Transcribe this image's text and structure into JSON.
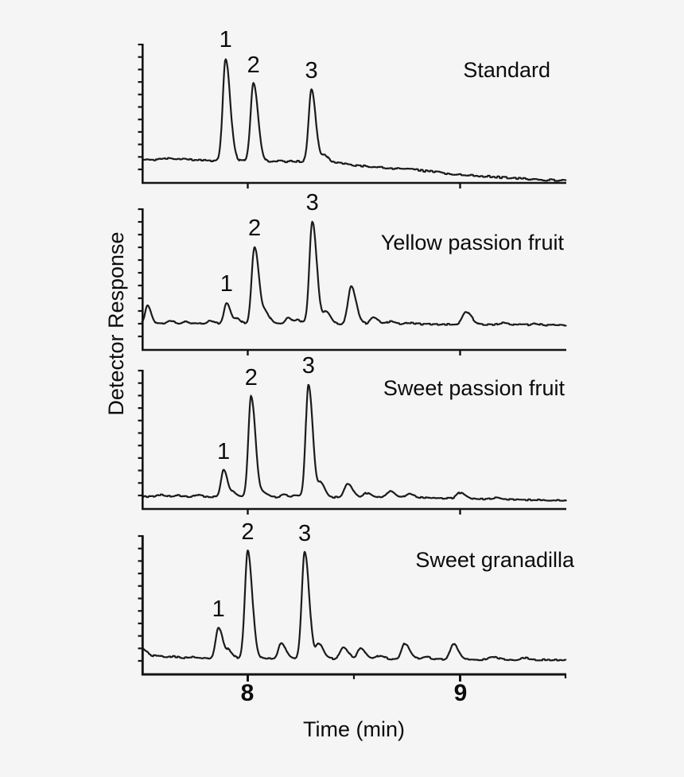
{
  "chart_data": {
    "type": "line",
    "description": "Stacked GC/HPLC chromatograms of four samples with three labeled peaks",
    "xlabel": "Time (min)",
    "ylabel": "Detector Response",
    "x_axis": {
      "range_min": [
        7.5,
        9.5
      ],
      "ticks": [
        8,
        9
      ],
      "tick_labels": [
        "8",
        "9"
      ]
    },
    "y_axis": {
      "tick_labels_shown": false
    },
    "panels": [
      {
        "title": "Standard",
        "labeled_peaks": [
          {
            "label": "1",
            "time_min": 7.9,
            "rel_height": 0.74
          },
          {
            "label": "2",
            "time_min": 8.03,
            "rel_height": 0.56
          },
          {
            "label": "3",
            "time_min": 8.3,
            "rel_height": 0.52
          }
        ],
        "baseline": [
          [
            7.5,
            0.17
          ],
          [
            7.88,
            0.16
          ],
          [
            8.32,
            0.152
          ],
          [
            8.42,
            0.148
          ],
          [
            8.5,
            0.128
          ],
          [
            8.62,
            0.112
          ],
          [
            8.78,
            0.096
          ],
          [
            8.95,
            0.066
          ],
          [
            9.1,
            0.05
          ],
          [
            9.25,
            0.034
          ],
          [
            9.4,
            0.022
          ],
          [
            9.5,
            0.018
          ]
        ],
        "peaks": [
          {
            "t": 7.62,
            "h": 0.008,
            "w": 0.015
          },
          {
            "t": 7.7,
            "h": 0.006,
            "w": 0.012
          },
          {
            "label": "1",
            "t": 7.896,
            "h": 0.735,
            "w": 0.0135
          },
          {
            "label": "2",
            "t": 8.027,
            "h": 0.555,
            "w": 0.0135
          },
          {
            "label": "3",
            "t": 8.3,
            "h": 0.52,
            "w": 0.013
          },
          {
            "t": 8.362,
            "h": 0.05,
            "w": 0.011
          }
        ],
        "noise": 0.0065,
        "seed": 3
      },
      {
        "title": "Yellow passion fruit",
        "labeled_peaks": [
          {
            "label": "1",
            "time_min": 7.9,
            "rel_height": 0.15
          },
          {
            "label": "2",
            "time_min": 8.03,
            "rel_height": 0.55
          },
          {
            "label": "3",
            "time_min": 8.3,
            "rel_height": 0.73
          }
        ],
        "baseline": [
          [
            7.5,
            0.186
          ],
          [
            8.6,
            0.183
          ],
          [
            9.5,
            0.175
          ]
        ],
        "peaks": [
          {
            "t": 7.528,
            "h": 0.13,
            "w": 0.011
          },
          {
            "t": 7.635,
            "h": 0.018,
            "w": 0.014
          },
          {
            "t": 7.705,
            "h": 0.014,
            "w": 0.014
          },
          {
            "t": 7.82,
            "h": 0.022,
            "w": 0.012
          },
          {
            "label": "1",
            "t": 7.9,
            "h": 0.15,
            "w": 0.012
          },
          {
            "t": 7.948,
            "h": 0.038,
            "w": 0.011
          },
          {
            "label": "2",
            "t": 8.032,
            "h": 0.545,
            "w": 0.0135
          },
          {
            "t": 8.085,
            "h": 0.07,
            "w": 0.013
          },
          {
            "t": 8.19,
            "h": 0.048,
            "w": 0.012
          },
          {
            "t": 8.235,
            "h": 0.025,
            "w": 0.011
          },
          {
            "label": "3",
            "t": 8.304,
            "h": 0.725,
            "w": 0.0135
          },
          {
            "t": 8.37,
            "h": 0.085,
            "w": 0.013
          },
          {
            "t": 8.487,
            "h": 0.265,
            "w": 0.015
          },
          {
            "t": 8.59,
            "h": 0.048,
            "w": 0.014
          },
          {
            "t": 8.67,
            "h": 0.018,
            "w": 0.015
          },
          {
            "t": 8.755,
            "h": 0.012,
            "w": 0.018
          },
          {
            "t": 9.028,
            "h": 0.088,
            "w": 0.017
          },
          {
            "t": 9.2,
            "h": 0.012,
            "w": 0.016
          },
          {
            "t": 9.35,
            "h": 0.01,
            "w": 0.015
          }
        ],
        "noise": 0.005,
        "seed": 7
      },
      {
        "title": "Sweet passion fruit",
        "labeled_peaks": [
          {
            "label": "1",
            "time_min": 7.89,
            "rel_height": 0.2
          },
          {
            "label": "2",
            "time_min": 8.02,
            "rel_height": 0.73
          },
          {
            "label": "3",
            "time_min": 8.29,
            "rel_height": 0.81
          }
        ],
        "baseline": [
          [
            7.5,
            0.09
          ],
          [
            8.75,
            0.082
          ],
          [
            9.1,
            0.072
          ],
          [
            9.5,
            0.06
          ]
        ],
        "peaks": [
          {
            "t": 7.585,
            "h": 0.012,
            "w": 0.015
          },
          {
            "t": 7.665,
            "h": 0.01,
            "w": 0.014
          },
          {
            "t": 7.76,
            "h": 0.012,
            "w": 0.013
          },
          {
            "label": "1",
            "t": 7.886,
            "h": 0.195,
            "w": 0.012
          },
          {
            "t": 7.932,
            "h": 0.028,
            "w": 0.011
          },
          {
            "label": "2",
            "t": 8.016,
            "h": 0.725,
            "w": 0.013
          },
          {
            "t": 8.075,
            "h": 0.025,
            "w": 0.012
          },
          {
            "t": 8.17,
            "h": 0.016,
            "w": 0.012
          },
          {
            "t": 8.225,
            "h": 0.012,
            "w": 0.012
          },
          {
            "label": "3",
            "t": 8.286,
            "h": 0.81,
            "w": 0.013
          },
          {
            "t": 8.345,
            "h": 0.1,
            "w": 0.012
          },
          {
            "t": 8.47,
            "h": 0.1,
            "w": 0.015
          },
          {
            "t": 8.56,
            "h": 0.032,
            "w": 0.014
          },
          {
            "t": 8.67,
            "h": 0.044,
            "w": 0.015
          },
          {
            "t": 8.76,
            "h": 0.028,
            "w": 0.015
          },
          {
            "t": 9.0,
            "h": 0.042,
            "w": 0.016
          },
          {
            "t": 9.17,
            "h": 0.012,
            "w": 0.015
          }
        ],
        "noise": 0.0045,
        "seed": 11
      },
      {
        "title": "Sweet granadilla",
        "labeled_peaks": [
          {
            "label": "1",
            "time_min": 7.86,
            "rel_height": 0.22
          },
          {
            "label": "2",
            "time_min": 8.0,
            "rel_height": 0.78
          },
          {
            "label": "3",
            "time_min": 8.27,
            "rel_height": 0.77
          }
        ],
        "baseline": [
          [
            7.5,
            0.12
          ],
          [
            8.2,
            0.114
          ],
          [
            9.5,
            0.104
          ]
        ],
        "peaks": [
          {
            "t": 7.487,
            "h": 0.075,
            "w": 0.022
          },
          {
            "t": 7.575,
            "h": 0.012,
            "w": 0.015
          },
          {
            "t": 7.65,
            "h": 0.01,
            "w": 0.015
          },
          {
            "t": 7.735,
            "h": 0.008,
            "w": 0.014
          },
          {
            "label": "1",
            "t": 7.862,
            "h": 0.22,
            "w": 0.013
          },
          {
            "t": 7.91,
            "h": 0.05,
            "w": 0.012
          },
          {
            "label": "2",
            "t": 8.0,
            "h": 0.775,
            "w": 0.0135
          },
          {
            "t": 8.158,
            "h": 0.115,
            "w": 0.013
          },
          {
            "label": "3",
            "t": 8.268,
            "h": 0.765,
            "w": 0.0135
          },
          {
            "t": 8.335,
            "h": 0.105,
            "w": 0.013
          },
          {
            "t": 8.45,
            "h": 0.078,
            "w": 0.015
          },
          {
            "t": 8.532,
            "h": 0.08,
            "w": 0.014
          },
          {
            "t": 8.62,
            "h": 0.024,
            "w": 0.014
          },
          {
            "t": 8.74,
            "h": 0.112,
            "w": 0.015
          },
          {
            "t": 8.835,
            "h": 0.018,
            "w": 0.014
          },
          {
            "t": 8.968,
            "h": 0.112,
            "w": 0.015
          },
          {
            "t": 9.15,
            "h": 0.02,
            "w": 0.016
          },
          {
            "t": 9.3,
            "h": 0.014,
            "w": 0.016
          }
        ],
        "noise": 0.005,
        "seed": 17
      }
    ]
  }
}
